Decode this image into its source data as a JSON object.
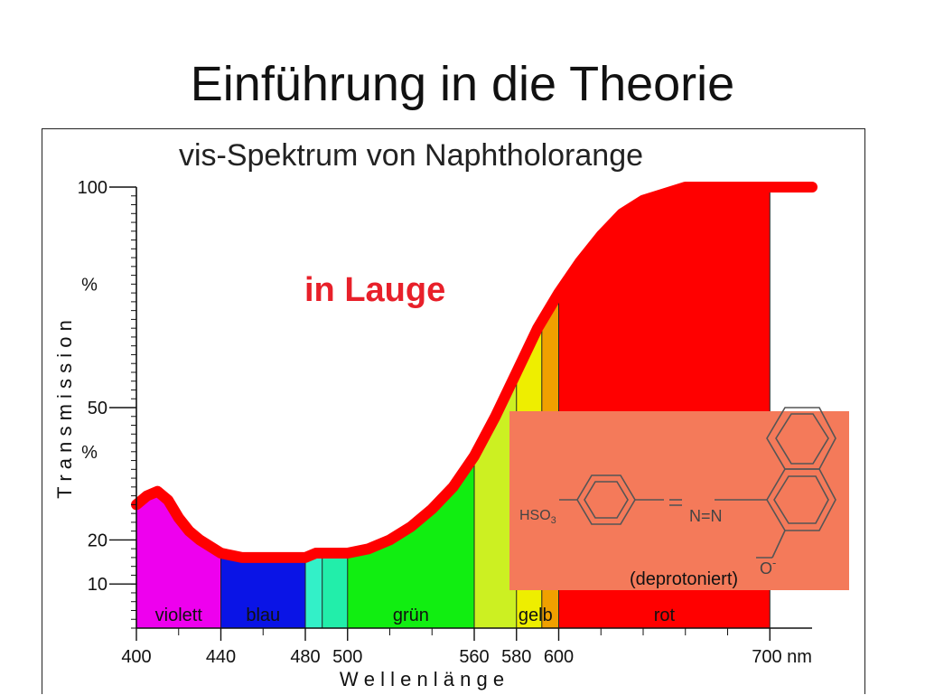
{
  "slide": {
    "title": "Einführung in die Theorie"
  },
  "chart_data": {
    "type": "area",
    "title": "vis-Spektrum von Naphtholorange",
    "condition_label": "in Lauge",
    "xlabel": "W e l l e n l ä n g e",
    "ylabel": "T r a n s m i s s i o n",
    "x_ticks": [
      {
        "value": 400,
        "label": "400"
      },
      {
        "value": 440,
        "label": "440"
      },
      {
        "value": 480,
        "label": "480"
      },
      {
        "value": 500,
        "label": "500"
      },
      {
        "value": 560,
        "label": "560"
      },
      {
        "value": 580,
        "label": "580"
      },
      {
        "value": 600,
        "label": "600"
      },
      {
        "value": 700,
        "label": "700 nm"
      }
    ],
    "y_ticks": [
      {
        "value": 100,
        "label": "100"
      },
      {
        "value": 50,
        "label": "50"
      },
      {
        "value": 20,
        "label": "20"
      },
      {
        "value": 10,
        "label": "10"
      }
    ],
    "y_unit_labels": [
      {
        "value": 78,
        "label": "%"
      },
      {
        "value": 40,
        "label": "%"
      }
    ],
    "xlim": [
      400,
      720
    ],
    "ylim": [
      0,
      100
    ],
    "series": [
      {
        "x": [
          400,
          405,
          410,
          415,
          420,
          425,
          430,
          440,
          450,
          460,
          470,
          480,
          485,
          490,
          500,
          510,
          520,
          530,
          540,
          550,
          560,
          570,
          580,
          590,
          600,
          610,
          620,
          630,
          640,
          660,
          680,
          700,
          710,
          720
        ],
        "y": [
          28,
          30,
          31,
          29,
          25,
          22,
          20,
          17,
          16,
          16,
          16,
          16,
          17,
          17,
          17,
          18,
          20,
          23,
          27,
          32,
          39,
          48,
          58,
          68,
          76,
          83,
          89,
          94,
          97,
          100,
          100,
          100,
          100,
          100
        ]
      }
    ],
    "bands": [
      {
        "from": 400,
        "to": 440,
        "color": "#ee00ee",
        "label": "violett"
      },
      {
        "from": 440,
        "to": 480,
        "color": "#0a14e6",
        "label": "blau"
      },
      {
        "from": 480,
        "to": 488,
        "color": "#33f0c8",
        "label": ""
      },
      {
        "from": 488,
        "to": 500,
        "color": "#22eeaa",
        "label": ""
      },
      {
        "from": 500,
        "to": 560,
        "color": "#11ee11",
        "label": "grün"
      },
      {
        "from": 560,
        "to": 580,
        "color": "#ccf022",
        "label": ""
      },
      {
        "from": 580,
        "to": 592,
        "color": "#eeee00",
        "label": "gelb"
      },
      {
        "from": 592,
        "to": 600,
        "color": "#f0a000",
        "label": ""
      },
      {
        "from": 600,
        "to": 700,
        "color": "#ff0000",
        "label": "rot"
      }
    ],
    "band_labels": [
      {
        "label": "violett",
        "x": 420
      },
      {
        "label": "blau",
        "x": 460
      },
      {
        "label": "grün",
        "x": 530
      },
      {
        "label": "gelb",
        "x": 589
      },
      {
        "label": "rot",
        "x": 650
      }
    ],
    "curve_color": "#ff0000",
    "structure": {
      "caption": "(deprotoniert)",
      "group_left": "HSO",
      "group_left_sub": "3",
      "azo": "N=N",
      "oxygen": "O",
      "charge": "-",
      "panel_color": "#f47a5a"
    }
  }
}
